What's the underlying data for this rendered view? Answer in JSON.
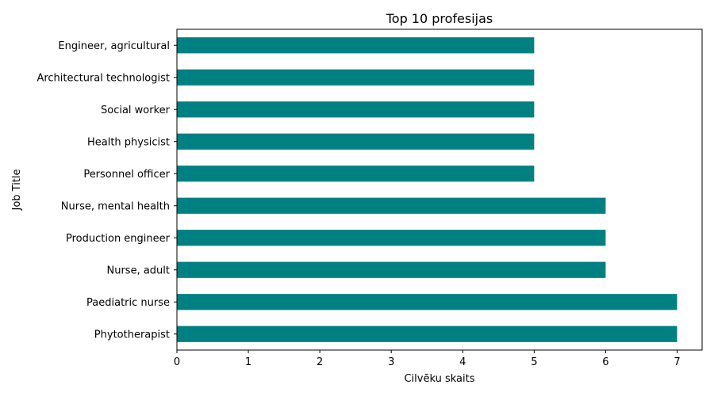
{
  "chart_data": {
    "type": "bar",
    "orientation": "horizontal",
    "title": "Top 10 profesijas",
    "xlabel": "Cilvēku skaits",
    "ylabel": "Job Title",
    "categories": [
      "Phytotherapist",
      "Paediatric nurse",
      "Nurse, adult",
      "Production engineer",
      "Nurse, mental health",
      "Personnel officer",
      "Health physicist",
      "Social worker",
      "Architectural technologist",
      "Engineer, agricultural"
    ],
    "values": [
      7,
      7,
      6,
      6,
      6,
      5,
      5,
      5,
      5,
      5
    ],
    "xlim": [
      0,
      7.35
    ],
    "xticks": [
      "0",
      "1",
      "2",
      "3",
      "4",
      "5",
      "6",
      "7"
    ],
    "bar_color": "#008080",
    "grid": false,
    "legend": "none"
  }
}
